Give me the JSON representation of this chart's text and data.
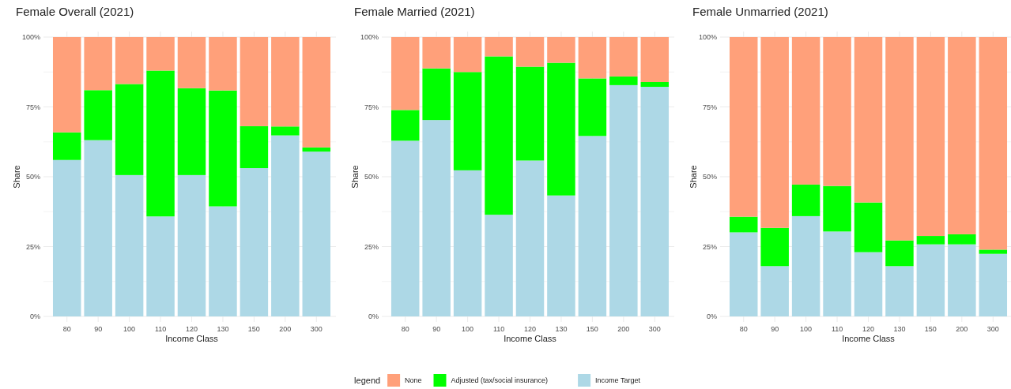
{
  "chart_data": [
    {
      "type": "bar",
      "title": "Female Overall (2021)",
      "xlabel": "Income Class",
      "ylabel": "Share",
      "stacked": true,
      "grid": true,
      "legend": "bottom",
      "legend_title": "legend",
      "categories": [
        "80",
        "90",
        "100",
        "110",
        "120",
        "130",
        "150",
        "200",
        "300"
      ],
      "ylim": [
        0,
        100
      ],
      "yticks": [
        {
          "value": 0,
          "label": "0%"
        },
        {
          "value": 25,
          "label": "25%"
        },
        {
          "value": 50,
          "label": "50%"
        },
        {
          "value": 75,
          "label": "75%"
        },
        {
          "value": 100,
          "label": "100%"
        }
      ],
      "series": [
        {
          "name": "Income Target",
          "color": "#add8e6",
          "values": [
            56,
            63.1,
            50.6,
            35.8,
            50.6,
            39.4,
            53.1,
            64.8,
            59
          ]
        },
        {
          "name": "Adjusted (tax/social insurance)",
          "color": "#00ff00",
          "values": [
            9.9,
            17.9,
            32.6,
            52.2,
            31.1,
            41.5,
            15,
            3.2,
            1.5
          ]
        },
        {
          "name": "None",
          "color": "#ffa07a",
          "values": [
            34.1,
            19,
            16.8,
            12,
            18.3,
            19.1,
            31.9,
            32,
            39.5
          ]
        }
      ]
    },
    {
      "type": "bar",
      "title": "Female Married (2021)",
      "xlabel": "Income Class",
      "ylabel": "Share",
      "stacked": true,
      "grid": true,
      "categories": [
        "80",
        "90",
        "100",
        "110",
        "120",
        "130",
        "150",
        "200",
        "300"
      ],
      "ylim": [
        0,
        100
      ],
      "yticks": [
        {
          "value": 0,
          "label": "0%"
        },
        {
          "value": 25,
          "label": "25%"
        },
        {
          "value": 50,
          "label": "50%"
        },
        {
          "value": 75,
          "label": "75%"
        },
        {
          "value": 100,
          "label": "100%"
        }
      ],
      "series": [
        {
          "color": "#add8e6",
          "values": [
            62.9,
            70.3,
            52.3,
            36.4,
            55.8,
            43.3,
            64.6,
            82.8,
            82.2
          ]
        },
        {
          "color": "#00ff00",
          "values": [
            11,
            18.5,
            35.2,
            56.7,
            33.6,
            47.5,
            20.6,
            3.1,
            1.7
          ]
        },
        {
          "color": "#ffa07a",
          "values": [
            26.1,
            11.2,
            12.5,
            6.9,
            10.6,
            9.2,
            14.8,
            14.1,
            16.1
          ]
        }
      ]
    },
    {
      "type": "bar",
      "title": "Female Unmarried (2021)",
      "xlabel": "Income Class",
      "ylabel": "Share",
      "stacked": true,
      "grid": true,
      "categories": [
        "80",
        "90",
        "100",
        "110",
        "120",
        "130",
        "150",
        "200",
        "300"
      ],
      "ylim": [
        0,
        100
      ],
      "yticks": [
        {
          "value": 0,
          "label": "0%"
        },
        {
          "value": 25,
          "label": "25%"
        },
        {
          "value": 50,
          "label": "50%"
        },
        {
          "value": 75,
          "label": "75%"
        },
        {
          "value": 100,
          "label": "100%"
        }
      ],
      "series": [
        {
          "color": "#add8e6",
          "values": [
            30.1,
            18,
            35.9,
            30.4,
            23,
            18,
            25.8,
            25.8,
            22.4
          ]
        },
        {
          "color": "#00ff00",
          "values": [
            5.6,
            13.7,
            11.3,
            16.3,
            17.8,
            9.2,
            3,
            3.6,
            1.5
          ]
        },
        {
          "color": "#ffa07a",
          "values": [
            64.3,
            68.3,
            52.8,
            53.3,
            59.2,
            72.8,
            71.2,
            70.6,
            76.1
          ]
        }
      ]
    }
  ]
}
